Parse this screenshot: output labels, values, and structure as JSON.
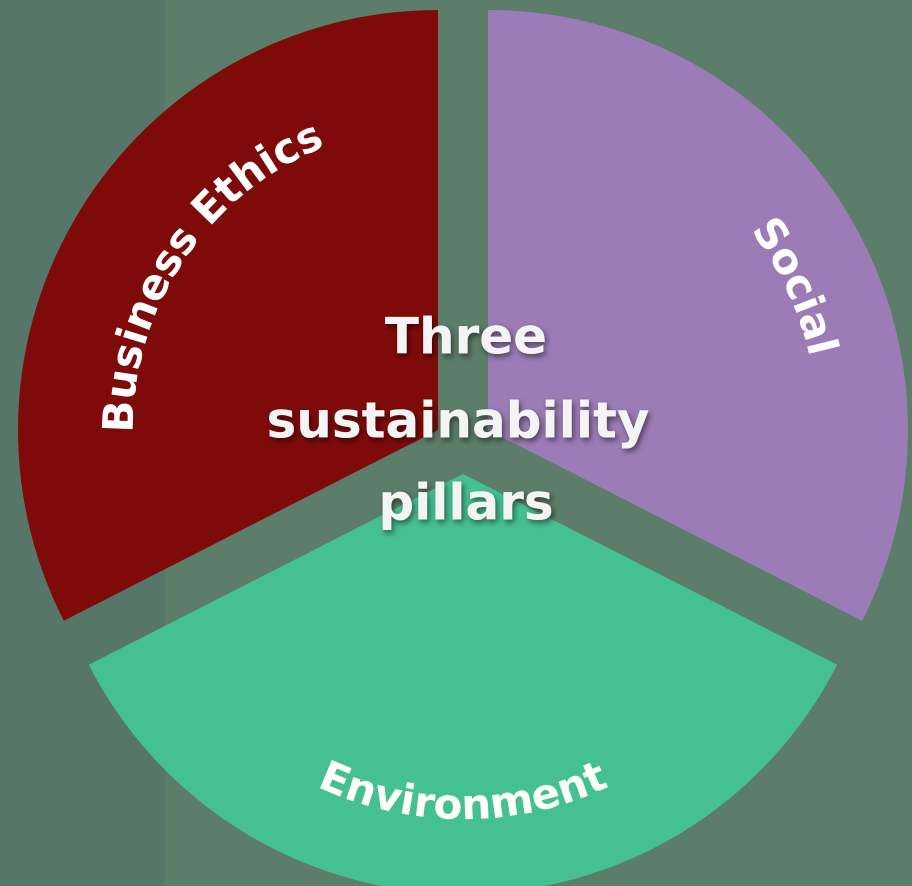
{
  "title": {
    "lines": [
      "Three",
      "sustainability",
      "pillars"
    ]
  },
  "segments": [
    {
      "label": "Business Ethics"
    },
    {
      "label": "Social"
    },
    {
      "label": "Environment"
    }
  ]
}
